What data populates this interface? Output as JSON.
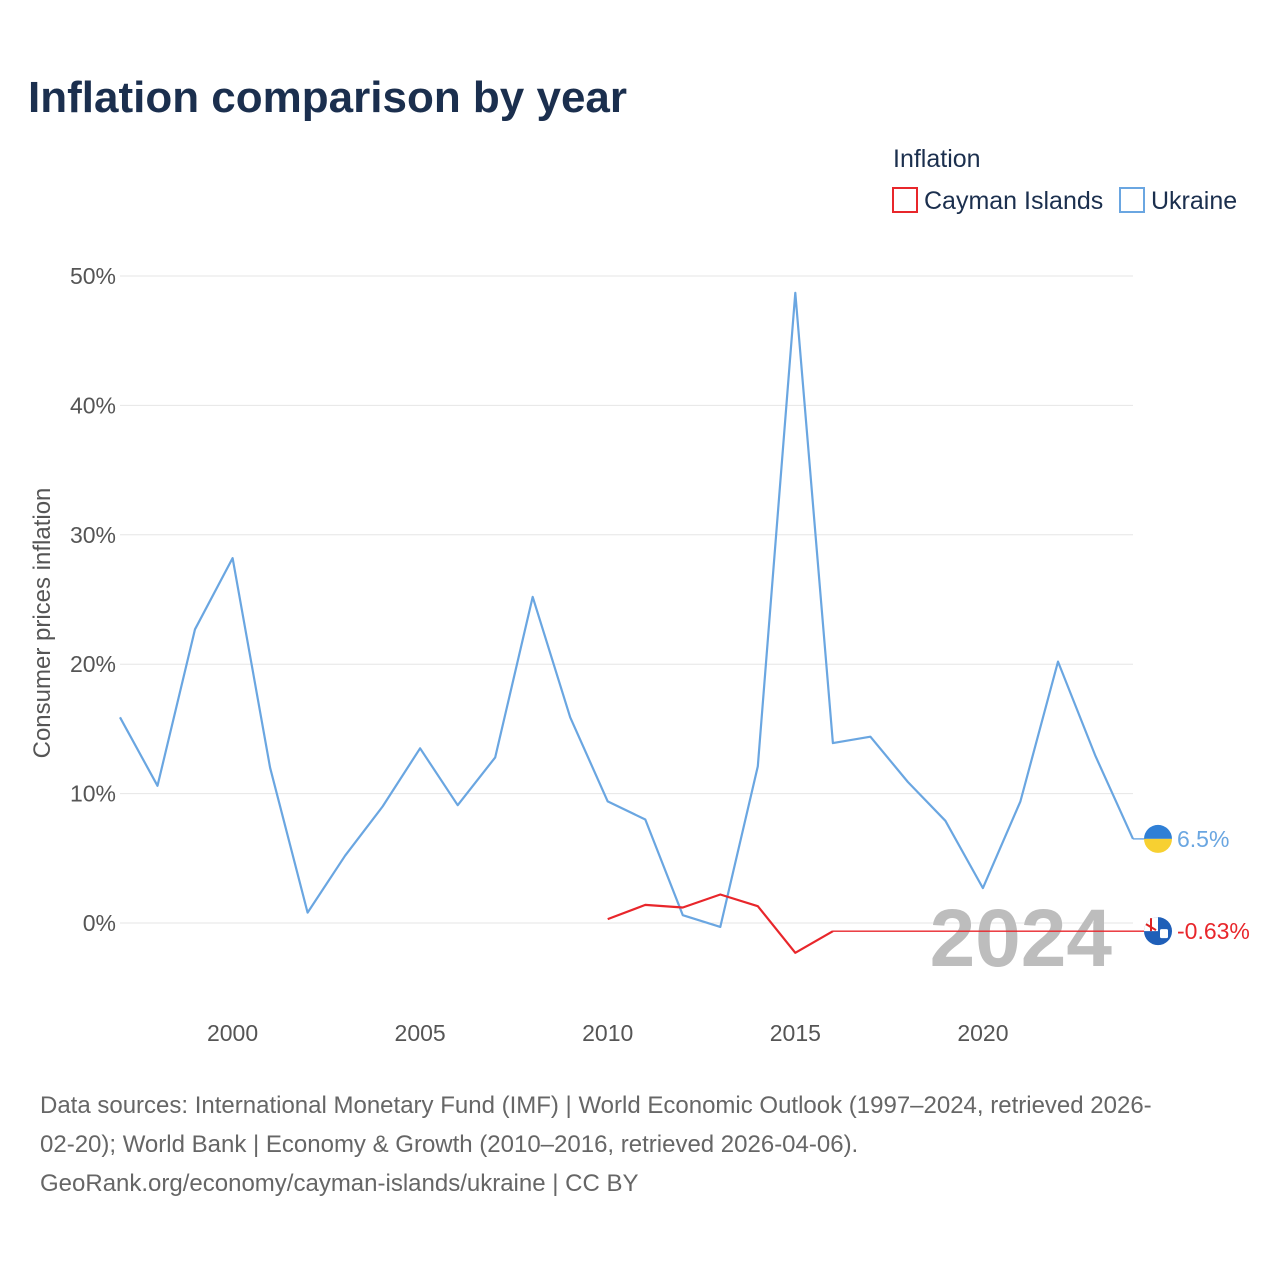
{
  "title": "Inflation comparison by year",
  "legend": {
    "title": "Inflation",
    "items": [
      {
        "label": "Cayman Islands",
        "color": "#e8262b"
      },
      {
        "label": "Ukraine",
        "color": "#6aa6e1"
      }
    ]
  },
  "year_watermark": "2024",
  "source_lines": [
    "Data sources: International Monetary Fund (IMF) | World Economic Outlook (1997–2024, retrieved 2026-",
    "02-20); World Bank | Economy & Growth (2010–2016, retrieved 2026-04-06).",
    "GeoRank.org/economy/cayman-islands/ukraine | CC BY"
  ],
  "chart_data": {
    "type": "line",
    "title": "Inflation comparison by year",
    "xlabel": "",
    "ylabel": "Consumer prices inflation",
    "xlim": [
      1997,
      2024
    ],
    "ylim": [
      -7.5,
      50
    ],
    "y_ticks": [
      0,
      10,
      20,
      30,
      40,
      50
    ],
    "y_tick_labels": [
      "0%",
      "10%",
      "20%",
      "30%",
      "40%",
      "50%"
    ],
    "x_ticks": [
      2000,
      2005,
      2010,
      2015,
      2020
    ],
    "x_tick_labels": [
      "2000",
      "2005",
      "2010",
      "2015",
      "2020"
    ],
    "grid": true,
    "legend_position": "top-right",
    "series": [
      {
        "name": "Ukraine",
        "color": "#6aa6e1",
        "end_label": "6.5%",
        "x": [
          1997,
          1998,
          1999,
          2000,
          2001,
          2002,
          2003,
          2004,
          2005,
          2006,
          2007,
          2008,
          2009,
          2010,
          2011,
          2012,
          2013,
          2014,
          2015,
          2016,
          2017,
          2018,
          2019,
          2020,
          2021,
          2022,
          2023,
          2024
        ],
        "values": [
          15.9,
          10.6,
          22.7,
          28.2,
          12.0,
          0.8,
          5.2,
          9.0,
          13.5,
          9.1,
          12.8,
          25.2,
          15.9,
          9.4,
          8.0,
          0.6,
          -0.3,
          12.1,
          48.7,
          13.9,
          14.4,
          10.9,
          7.9,
          2.7,
          9.4,
          20.2,
          12.9,
          6.5
        ]
      },
      {
        "name": "Cayman Islands",
        "color": "#e8262b",
        "end_label": "-0.63%",
        "x": [
          2010,
          2011,
          2012,
          2013,
          2014,
          2015,
          2016
        ],
        "values": [
          0.3,
          1.4,
          1.2,
          2.2,
          1.3,
          -2.3,
          -0.63
        ],
        "hold_to": 2024
      }
    ]
  }
}
